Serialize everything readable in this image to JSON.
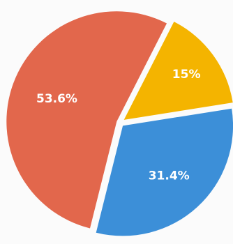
{
  "chart_data": {
    "type": "pie",
    "title": "",
    "slices": [
      {
        "label": "15%",
        "value": 15.0,
        "color": "#f4b400"
      },
      {
        "label": "31.4%",
        "value": 31.4,
        "color": "#3c8fd8"
      },
      {
        "label": "53.6%",
        "value": 53.6,
        "color": "#e2674c"
      }
    ],
    "start_angle_deg": 27,
    "direction": "clockwise",
    "exploded": true,
    "legend": "none"
  }
}
